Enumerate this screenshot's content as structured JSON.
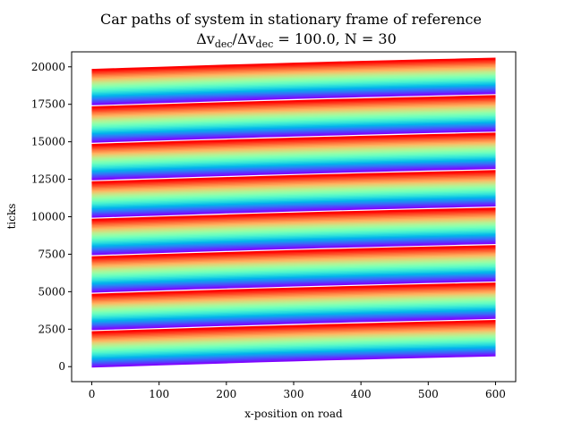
{
  "chart_data": {
    "type": "line",
    "title": "Car paths of system in stationary frame of reference",
    "subtitle_parts": {
      "prefix": "Δv",
      "sub1": "dec",
      "slash": "/Δv",
      "sub2": "dec",
      "suffix": " = 100.0, N = 30"
    },
    "xlabel": "x-position on road",
    "ylabel": "ticks",
    "xlim": [
      -30,
      630
    ],
    "ylim": [
      -1000,
      21000
    ],
    "x_ticks": [
      0,
      100,
      200,
      300,
      400,
      500,
      600
    ],
    "y_ticks": [
      0,
      2500,
      5000,
      7500,
      10000,
      12500,
      15000,
      17500,
      20000
    ],
    "road_length": 600,
    "max_ticks": 20000,
    "car_count": 30,
    "lap_count": 8,
    "colormap": "rainbow",
    "grid": false,
    "legend": "none"
  }
}
